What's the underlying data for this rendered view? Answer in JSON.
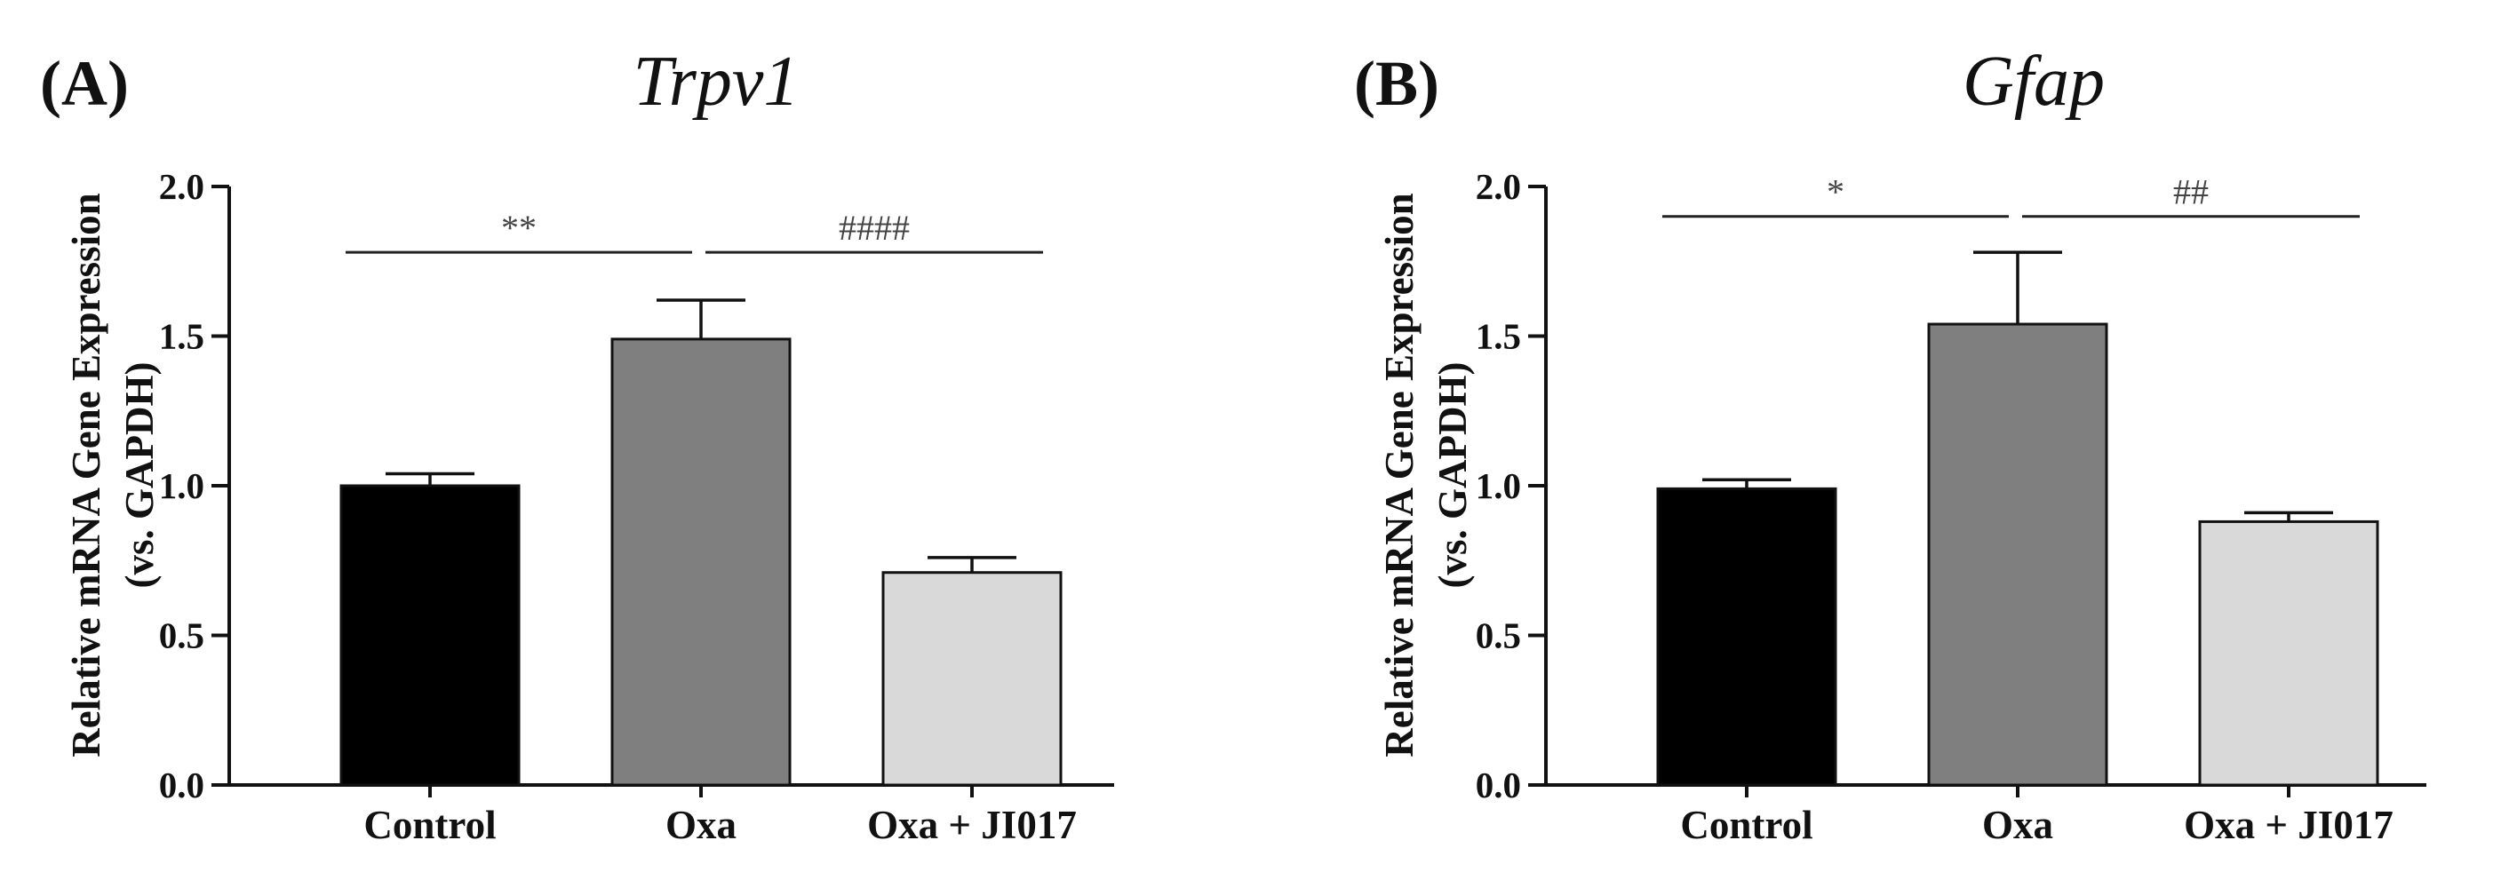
{
  "chart_data": [
    {
      "type": "bar",
      "panel": "(A)",
      "title": "Trpv1",
      "ylabel": "Relative mRNA Gene Expression",
      "ylabel2": "(vs. GAPDH)",
      "ylim": [
        0,
        2.0
      ],
      "yticks": [
        "0.0",
        "0.5",
        "1.0",
        "1.5",
        "2.0"
      ],
      "categories": [
        "Control",
        "Oxa",
        "Oxa + JI017"
      ],
      "values": [
        1.0,
        1.49,
        0.71
      ],
      "errors": [
        0.04,
        0.13,
        0.05
      ],
      "colors": [
        "#000000",
        "#7f7f7f",
        "#d9d9d9"
      ],
      "significance": [
        {
          "from": 0,
          "to": 1,
          "y": 1.78,
          "label": "**"
        },
        {
          "from": 1,
          "to": 2,
          "y": 1.78,
          "label": "####"
        }
      ]
    },
    {
      "type": "bar",
      "panel": "(B)",
      "title": "Gfap",
      "ylabel": "Relative mRNA Gene Expression",
      "ylabel2": "(vs. GAPDH)",
      "ylim": [
        0,
        2.0
      ],
      "yticks": [
        "0.0",
        "0.5",
        "1.0",
        "1.5",
        "2.0"
      ],
      "categories": [
        "Control",
        "Oxa",
        "Oxa + JI017"
      ],
      "values": [
        0.99,
        1.54,
        0.88
      ],
      "errors": [
        0.03,
        0.24,
        0.03
      ],
      "colors": [
        "#000000",
        "#7f7f7f",
        "#d9d9d9"
      ],
      "significance": [
        {
          "from": 0,
          "to": 1,
          "y": 1.9,
          "label": "*"
        },
        {
          "from": 1,
          "to": 2,
          "y": 1.9,
          "label": "##"
        }
      ]
    }
  ]
}
